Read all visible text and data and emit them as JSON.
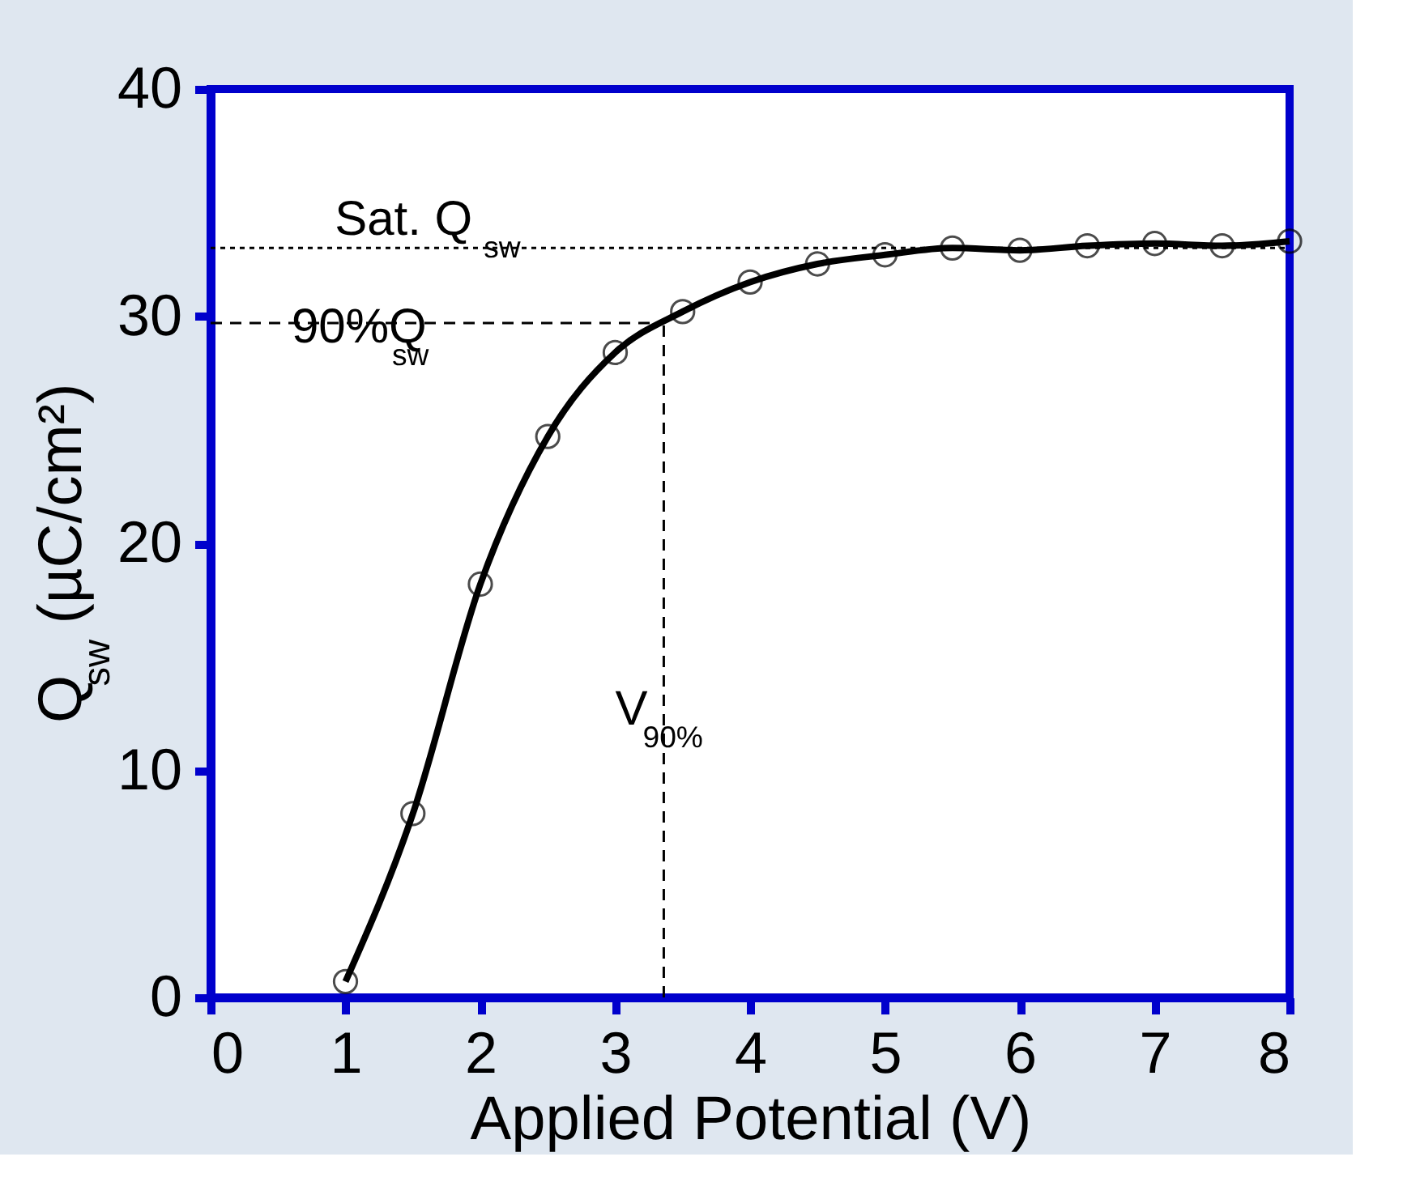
{
  "chart_data": {
    "type": "line",
    "xlabel": "Applied Potential (V)",
    "ylabel": "Q$_{sw}$ (µC/cm²)",
    "x": [
      1,
      1.5,
      2,
      2.5,
      3,
      3.5,
      4,
      4.5,
      5,
      5.5,
      6,
      6.5,
      7,
      7.5,
      8
    ],
    "series": [
      {
        "type": "scatter",
        "color": "#000000",
        "marker": "circle",
        "values": [
          0.7,
          8.1,
          18.2,
          24.7,
          28.4,
          30.2,
          31.5,
          32.3,
          32.7,
          33.0,
          32.9,
          33.1,
          33.2,
          33.1,
          33.3
        ]
      },
      {
        "color": "#000000",
        "marker": "none",
        "line_style": "solid",
        "values": [
          0.7,
          8.1,
          18.2,
          24.7,
          28.4,
          30.2,
          31.5,
          32.3,
          32.7,
          33.0,
          32.9,
          33.1,
          33.2,
          33.1,
          33.3
        ]
      }
    ],
    "xlim": [
      0,
      8
    ],
    "xticks": [
      0,
      1,
      2,
      3,
      4,
      5,
      6,
      7,
      8
    ],
    "ylim": [
      0,
      40
    ],
    "yticks": [
      0,
      10,
      20,
      30,
      40
    ],
    "grid": false,
    "legend": false,
    "ref_lines": [
      {
        "axis": "y",
        "value": 33,
        "label": "Sat. Q$_{sw}$",
        "color": "#000000",
        "line_style": "dotted"
      },
      {
        "axis": "y",
        "value": 29.7,
        "label": "90%Q$_{sw}$",
        "color": "#000000",
        "line_style": "dashed"
      },
      {
        "axis": "x",
        "value": 3.36,
        "label": "V$_{90%}$",
        "color": "#000000",
        "line_style": "dashed"
      }
    ]
  }
}
